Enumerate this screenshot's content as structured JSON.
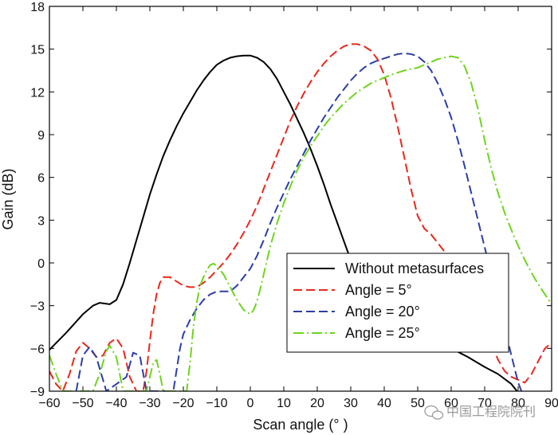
{
  "chart_data": {
    "type": "line",
    "xlabel": "Scan angle (° )",
    "ylabel": "Gain (dB)",
    "xlim": [
      -60,
      90
    ],
    "ylim": [
      -9,
      18
    ],
    "xticks": [
      -60,
      -50,
      -40,
      -30,
      -20,
      -10,
      0,
      10,
      20,
      30,
      40,
      50,
      60,
      70,
      80,
      90
    ],
    "yticks": [
      -9,
      -6,
      -3,
      0,
      3,
      6,
      9,
      12,
      15,
      18
    ],
    "legend_position": "lower-right",
    "series": [
      {
        "name": "Without metasurfaces",
        "color": "#000000",
        "dash": "solid",
        "points": [
          [
            -60,
            -6.1
          ],
          [
            -55,
            -4.9
          ],
          [
            -50,
            -3.6
          ],
          [
            -47,
            -3.0
          ],
          [
            -45,
            -2.8
          ],
          [
            -42,
            -2.9
          ],
          [
            -40,
            -2.6
          ],
          [
            -38,
            -1.5
          ],
          [
            -36,
            0.0
          ],
          [
            -34,
            1.6
          ],
          [
            -32,
            3.2
          ],
          [
            -30,
            4.8
          ],
          [
            -28,
            6.2
          ],
          [
            -26,
            7.5
          ],
          [
            -24,
            8.6
          ],
          [
            -22,
            9.6
          ],
          [
            -20,
            10.5
          ],
          [
            -18,
            11.3
          ],
          [
            -16,
            12.1
          ],
          [
            -14,
            12.8
          ],
          [
            -12,
            13.4
          ],
          [
            -10,
            13.9
          ],
          [
            -8,
            14.2
          ],
          [
            -6,
            14.4
          ],
          [
            -4,
            14.5
          ],
          [
            -2,
            14.55
          ],
          [
            0,
            14.55
          ],
          [
            2,
            14.4
          ],
          [
            4,
            14.1
          ],
          [
            6,
            13.6
          ],
          [
            8,
            12.9
          ],
          [
            10,
            12.0
          ],
          [
            12,
            11.1
          ],
          [
            14,
            10.1
          ],
          [
            16,
            9.1
          ],
          [
            18,
            8.0
          ],
          [
            20,
            6.8
          ],
          [
            22,
            5.5
          ],
          [
            24,
            4.1
          ],
          [
            26,
            2.8
          ],
          [
            28,
            1.5
          ],
          [
            30,
            0.2
          ],
          [
            32,
            -1.1
          ],
          [
            34,
            -2.2
          ],
          [
            36,
            -3.0
          ],
          [
            38,
            -3.3
          ],
          [
            45,
            -4.0
          ],
          [
            50,
            -4.6
          ],
          [
            55,
            -5.3
          ],
          [
            60,
            -6.0
          ],
          [
            65,
            -6.6
          ],
          [
            70,
            -7.3
          ],
          [
            74,
            -7.8
          ],
          [
            78,
            -8.5
          ],
          [
            80,
            -9.1
          ]
        ]
      },
      {
        "name": "Angle = 5°",
        "color": "#e8281c",
        "dash": "dashed",
        "points": [
          [
            -60,
            -7.6
          ],
          [
            -58,
            -8.5
          ],
          [
            -56,
            -9.0
          ],
          [
            -54,
            -7.8
          ],
          [
            -52,
            -6.2
          ],
          [
            -50,
            -5.6
          ],
          [
            -48,
            -6.0
          ],
          [
            -46,
            -6.6
          ],
          [
            -44,
            -6.5
          ],
          [
            -42,
            -5.6
          ],
          [
            -40,
            -5.3
          ],
          [
            -38,
            -6.0
          ],
          [
            -36,
            -8.0
          ],
          [
            -34,
            -9.0
          ],
          [
            -32,
            -9.0
          ],
          [
            -31,
            -7.6
          ],
          [
            -30,
            -5.5
          ],
          [
            -29,
            -3.6
          ],
          [
            -28,
            -2.2
          ],
          [
            -27,
            -1.4
          ],
          [
            -26,
            -1.0
          ],
          [
            -24,
            -1.0
          ],
          [
            -22,
            -1.3
          ],
          [
            -20,
            -1.6
          ],
          [
            -18,
            -1.7
          ],
          [
            -16,
            -1.7
          ],
          [
            -14,
            -1.4
          ],
          [
            -12,
            -1.0
          ],
          [
            -10,
            -0.5
          ],
          [
            -8,
            0.0
          ],
          [
            -6,
            0.6
          ],
          [
            -4,
            1.3
          ],
          [
            -2,
            2.1
          ],
          [
            0,
            3.0
          ],
          [
            2,
            4.0
          ],
          [
            4,
            5.2
          ],
          [
            6,
            6.4
          ],
          [
            8,
            7.6
          ],
          [
            10,
            8.8
          ],
          [
            12,
            10.0
          ],
          [
            14,
            11.0
          ],
          [
            16,
            11.9
          ],
          [
            18,
            12.7
          ],
          [
            20,
            13.4
          ],
          [
            22,
            14.0
          ],
          [
            24,
            14.5
          ],
          [
            26,
            14.9
          ],
          [
            28,
            15.2
          ],
          [
            30,
            15.35
          ],
          [
            32,
            15.35
          ],
          [
            34,
            15.2
          ],
          [
            36,
            14.9
          ],
          [
            38,
            14.3
          ],
          [
            40,
            13.2
          ],
          [
            42,
            11.6
          ],
          [
            44,
            9.6
          ],
          [
            46,
            7.4
          ],
          [
            48,
            5.2
          ],
          [
            50,
            3.3
          ],
          [
            52,
            2.4
          ],
          [
            54,
            2.0
          ],
          [
            56,
            1.4
          ],
          [
            58,
            0.8
          ],
          [
            60,
            -0.3
          ],
          [
            62,
            -1.8
          ],
          [
            64,
            -2.8
          ],
          [
            66,
            -3.4
          ],
          [
            68,
            -3.8
          ],
          [
            70,
            -4.5
          ],
          [
            72,
            -5.6
          ],
          [
            74,
            -6.8
          ],
          [
            76,
            -7.6
          ],
          [
            78,
            -8.0
          ],
          [
            80,
            -8.2
          ],
          [
            82,
            -8.4
          ],
          [
            84,
            -7.8
          ],
          [
            86,
            -6.9
          ],
          [
            88,
            -6.0
          ],
          [
            90,
            -5.6
          ]
        ]
      },
      {
        "name": "Angle = 20°",
        "color": "#2c3ea8",
        "dash": "dashed",
        "points": [
          [
            -52,
            -9.0
          ],
          [
            -50,
            -6.5
          ],
          [
            -48,
            -5.9
          ],
          [
            -46,
            -6.6
          ],
          [
            -44,
            -8.2
          ],
          [
            -43,
            -9.0
          ],
          [
            -37,
            -8.0
          ],
          [
            -35,
            -6.3
          ],
          [
            -33,
            -6.5
          ],
          [
            -31,
            -9.0
          ],
          [
            -23,
            -9.0
          ],
          [
            -22,
            -7.5
          ],
          [
            -21,
            -6.0
          ],
          [
            -20,
            -5.0
          ],
          [
            -18,
            -4.0
          ],
          [
            -16,
            -3.2
          ],
          [
            -14,
            -2.6
          ],
          [
            -12,
            -2.2
          ],
          [
            -10,
            -2.0
          ],
          [
            -6,
            -2.0
          ],
          [
            -4,
            -1.6
          ],
          [
            -2,
            -1.0
          ],
          [
            0,
            -0.4
          ],
          [
            2,
            0.5
          ],
          [
            4,
            1.6
          ],
          [
            6,
            2.8
          ],
          [
            8,
            3.9
          ],
          [
            10,
            4.9
          ],
          [
            12,
            5.9
          ],
          [
            14,
            6.8
          ],
          [
            16,
            7.7
          ],
          [
            18,
            8.6
          ],
          [
            20,
            9.4
          ],
          [
            22,
            10.2
          ],
          [
            24,
            10.9
          ],
          [
            26,
            11.6
          ],
          [
            28,
            12.2
          ],
          [
            30,
            12.8
          ],
          [
            32,
            13.3
          ],
          [
            34,
            13.7
          ],
          [
            36,
            14.0
          ],
          [
            38,
            14.2
          ],
          [
            40,
            14.35
          ],
          [
            42,
            14.5
          ],
          [
            44,
            14.65
          ],
          [
            46,
            14.7
          ],
          [
            48,
            14.65
          ],
          [
            50,
            14.5
          ],
          [
            52,
            14.1
          ],
          [
            54,
            13.5
          ],
          [
            56,
            12.6
          ],
          [
            58,
            11.5
          ],
          [
            60,
            10.2
          ],
          [
            62,
            8.6
          ],
          [
            64,
            6.8
          ],
          [
            66,
            4.9
          ],
          [
            68,
            3.0
          ],
          [
            70,
            1.1
          ],
          [
            72,
            -0.8
          ],
          [
            74,
            -2.7
          ],
          [
            76,
            -4.6
          ],
          [
            78,
            -6.5
          ],
          [
            80,
            -8.4
          ],
          [
            81,
            -9.0
          ]
        ]
      },
      {
        "name": "Angle = 25°",
        "color": "#6fd41e",
        "dash": "dashdot",
        "points": [
          [
            -60,
            -6.5
          ],
          [
            -58,
            -7.8
          ],
          [
            -56,
            -9.0
          ],
          [
            -47,
            -9.0
          ],
          [
            -45,
            -7.8
          ],
          [
            -43,
            -6.2
          ],
          [
            -42,
            -5.8
          ],
          [
            -40,
            -6.6
          ],
          [
            -38,
            -9.0
          ],
          [
            -31,
            -9.0
          ],
          [
            -29,
            -7.0
          ],
          [
            -28,
            -6.8
          ],
          [
            -27,
            -7.8
          ],
          [
            -26,
            -9.0
          ],
          [
            -19,
            -9.0
          ],
          [
            -18,
            -7.0
          ],
          [
            -17,
            -4.5
          ],
          [
            -16,
            -2.8
          ],
          [
            -15,
            -1.6
          ],
          [
            -14,
            -1.0
          ],
          [
            -13,
            -0.5
          ],
          [
            -12,
            -0.15
          ],
          [
            -11,
            -0.05
          ],
          [
            -10,
            -0.2
          ],
          [
            -8,
            -0.8
          ],
          [
            -6,
            -1.7
          ],
          [
            -4,
            -2.6
          ],
          [
            -2,
            -3.3
          ],
          [
            0,
            -3.6
          ],
          [
            1,
            -3.3
          ],
          [
            2,
            -2.7
          ],
          [
            3,
            -1.8
          ],
          [
            4,
            -0.8
          ],
          [
            6,
            1.2
          ],
          [
            8,
            2.8
          ],
          [
            10,
            4.2
          ],
          [
            12,
            5.4
          ],
          [
            14,
            6.5
          ],
          [
            16,
            7.4
          ],
          [
            18,
            8.2
          ],
          [
            20,
            8.9
          ],
          [
            22,
            9.6
          ],
          [
            24,
            10.2
          ],
          [
            26,
            10.7
          ],
          [
            28,
            11.2
          ],
          [
            30,
            11.6
          ],
          [
            32,
            12.0
          ],
          [
            34,
            12.3
          ],
          [
            36,
            12.6
          ],
          [
            38,
            12.8
          ],
          [
            40,
            13.0
          ],
          [
            42,
            13.2
          ],
          [
            44,
            13.35
          ],
          [
            46,
            13.5
          ],
          [
            48,
            13.6
          ],
          [
            50,
            13.7
          ],
          [
            52,
            13.9
          ],
          [
            54,
            14.1
          ],
          [
            56,
            14.3
          ],
          [
            58,
            14.4
          ],
          [
            60,
            14.5
          ],
          [
            62,
            14.4
          ],
          [
            64,
            13.8
          ],
          [
            66,
            12.6
          ],
          [
            68,
            10.8
          ],
          [
            70,
            8.6
          ],
          [
            72,
            6.6
          ],
          [
            74,
            4.9
          ],
          [
            76,
            3.5
          ],
          [
            78,
            2.3
          ],
          [
            80,
            1.2
          ],
          [
            82,
            0.2
          ],
          [
            84,
            -0.7
          ],
          [
            86,
            -1.5
          ],
          [
            88,
            -2.2
          ],
          [
            90,
            -2.9
          ]
        ]
      }
    ]
  },
  "watermark": {
    "text": "中国工程院院刊",
    "icon": "wechat-icon"
  }
}
